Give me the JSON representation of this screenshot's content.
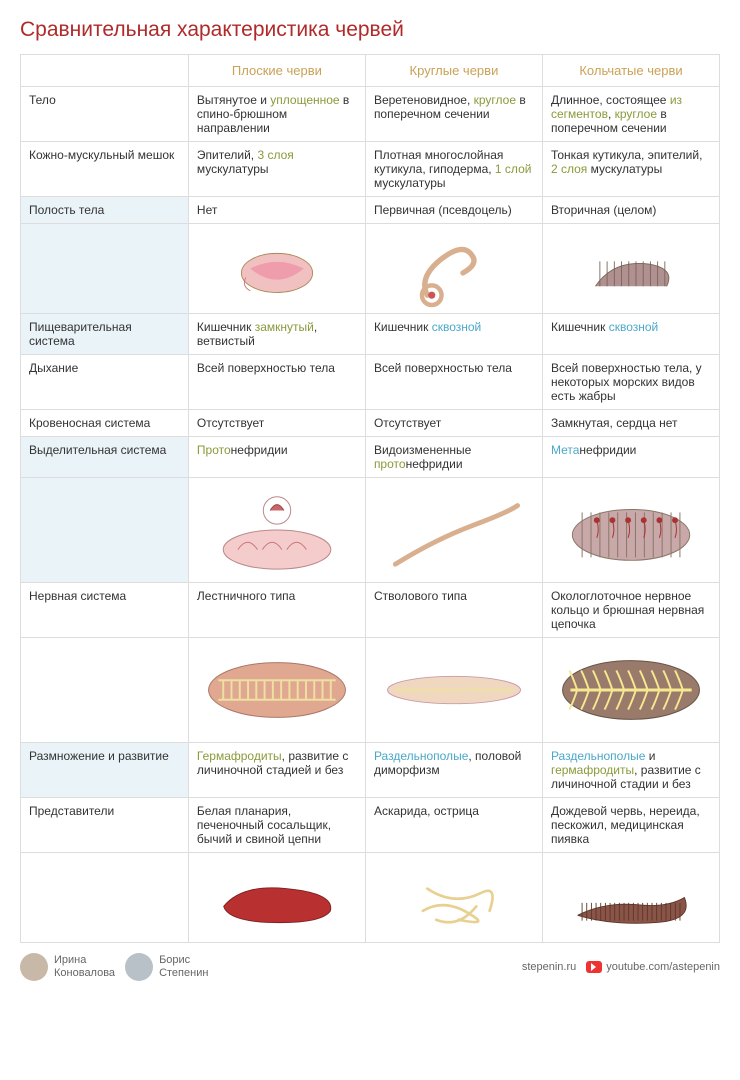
{
  "title": "Сравнительная характеристика червей",
  "columns": [
    "Плоские черви",
    "Круглые черви",
    "Кольчатые черви"
  ],
  "rows": {
    "body": {
      "label": "Тело",
      "flat": [
        [
          "Вытянутое и ",
          ""
        ],
        [
          "уплощенное",
          "olive"
        ],
        [
          " в спино-брюшном направлении",
          ""
        ]
      ],
      "round": [
        [
          "Веретеновидное, ",
          ""
        ],
        [
          "круглое",
          "olive"
        ],
        [
          " в поперечном сечении",
          ""
        ]
      ],
      "ring": [
        [
          "Длинное, состоящее ",
          ""
        ],
        [
          "из сегментов",
          "olive"
        ],
        [
          ", ",
          ""
        ],
        [
          "круглое",
          "olive"
        ],
        [
          " в поперечном сечении",
          ""
        ]
      ]
    },
    "skin": {
      "label": "Кожно-мускульный мешок",
      "flat": [
        [
          "Эпителий, ",
          ""
        ],
        [
          "3 слоя",
          "olive"
        ],
        [
          " мускулатуры",
          ""
        ]
      ],
      "round": [
        [
          "Плотная многослойная кутикула, гиподерма, ",
          ""
        ],
        [
          "1 слой",
          "olive"
        ],
        [
          " мускулатуры",
          ""
        ]
      ],
      "ring": [
        [
          "Тонкая кутикула, эпителий, ",
          ""
        ],
        [
          "2 слоя",
          "olive"
        ],
        [
          " мускулатуры",
          ""
        ]
      ]
    },
    "cavity": {
      "label": "Полость тела",
      "hl": true,
      "flat": [
        [
          "Нет",
          ""
        ]
      ],
      "round": [
        [
          "Первичная (псевдоцель)",
          ""
        ]
      ],
      "ring": [
        [
          "Вторичная (целом)",
          ""
        ]
      ]
    },
    "digest": {
      "label": "Пищеварительная система",
      "hl": true,
      "flat": [
        [
          "Кишечник ",
          ""
        ],
        [
          "замкнутый",
          "olive"
        ],
        [
          ", ветвистый",
          ""
        ]
      ],
      "round": [
        [
          "Кишечник ",
          ""
        ],
        [
          "сквозной",
          "blue"
        ]
      ],
      "ring": [
        [
          "Кишечник ",
          ""
        ],
        [
          "сквозной",
          "blue"
        ]
      ]
    },
    "breath": {
      "label": "Дыхание",
      "flat": [
        [
          "Всей поверхностью тела",
          ""
        ]
      ],
      "round": [
        [
          "Всей поверхностью тела",
          ""
        ]
      ],
      "ring": [
        [
          "Всей поверхностью тела, у некоторых морских видов есть жабры",
          ""
        ]
      ]
    },
    "blood": {
      "label": "Кровеносная система",
      "flat": [
        [
          "Отсутствует",
          ""
        ]
      ],
      "round": [
        [
          "Отсутствует",
          ""
        ]
      ],
      "ring": [
        [
          "Замкнутая, сердца нет",
          ""
        ]
      ]
    },
    "excret": {
      "label": "Выделительная система",
      "hl": true,
      "flat": [
        [
          "Прото",
          "olive"
        ],
        [
          "нефридии",
          ""
        ]
      ],
      "round": [
        [
          "Видоизмененные ",
          ""
        ],
        [
          "прото",
          "olive"
        ],
        [
          "нефридии",
          ""
        ]
      ],
      "ring": [
        [
          "Мета",
          "blue"
        ],
        [
          "нефридии",
          ""
        ]
      ]
    },
    "nerve": {
      "label": "Нервная система",
      "flat": [
        [
          "Лестничного типа",
          ""
        ]
      ],
      "round": [
        [
          "Стволового типа",
          ""
        ]
      ],
      "ring": [
        [
          "Окологлоточное нервное кольцо и брюшная нервная цепочка",
          ""
        ]
      ]
    },
    "repro": {
      "label": "Размножение и развитие",
      "hl": true,
      "flat": [
        [
          "Гермафродиты",
          "olive"
        ],
        [
          ", развитие с личиночной стадией и без",
          ""
        ]
      ],
      "round": [
        [
          "Раздельнополые",
          "blue"
        ],
        [
          ", половой диморфизм",
          ""
        ]
      ],
      "ring": [
        [
          "Раздельнополые",
          "blue"
        ],
        [
          " и ",
          ""
        ],
        [
          "гермафродиты",
          "olive"
        ],
        [
          ", развитие с личиночной стадии и без",
          ""
        ]
      ]
    },
    "reps": {
      "label": "Представители",
      "flat": [
        [
          "Белая планария, печеночный сосальщик, бычий и свиной цепни",
          ""
        ]
      ],
      "round": [
        [
          "Аскарида, острица",
          ""
        ]
      ],
      "ring": [
        [
          "Дождевой червь, нереида, пескожил, медицинская пиявка",
          ""
        ]
      ]
    }
  },
  "svg": {
    "cavity_flat": "<ellipse cx='90' cy='55' rx='40' ry='22' fill='#f1c0c0' stroke='#a85' stroke-width='1'/><path d='M60 50 Q90 35 120 50 Q90 75 60 50' fill='#e79' opacity='0.5'/><path d='M55 60 Q50 70 60 75' stroke='#c77' fill='none'/>",
    "cavity_round": "<path d='M60 80 Q50 60 75 40 Q100 20 110 35 Q118 45 100 55' fill='none' stroke='#d8b090' stroke-width='6' stroke-linecap='round'/><circle cx='65' cy='80' r='11' fill='none' stroke='#d8b090' stroke-width='5'/><circle cx='65' cy='80' r='4' fill='#c55'/>",
    "cavity_ring": "<path d='M50 70 Q70 40 110 45 Q140 50 130 70' fill='#b09090' stroke='#765' stroke-width='1'/><g stroke='#765' stroke-width='1'>REPEAT</g>",
    "excret_flat": "<ellipse cx='90' cy='70' rx='55' ry='20' fill='#f4cccc' stroke='#b88'/><g stroke='#c77' stroke-width='1' fill='none'><path d='M50 70 Q60 55 70 70'/><path d='M75 70 Q85 55 95 70'/><path d='M100 70 Q110 55 120 70'/></g><circle cx='90' cy='30' r='14' fill='none' stroke='#b88'/><path d='M83 30 Q90 18 97 30' fill='#c66' stroke='#944'/>",
    "excret_round": "<path d='M30 85 Q70 60 110 45 Q145 32 155 25' fill='none' stroke='#d8b090' stroke-width='5' stroke-linecap='round'/>",
    "excret_ring": "<ellipse cx='90' cy='55' rx='60' ry='26' fill='#c8a8a8' stroke='#876'/><g stroke='#876'>SEG</g><g fill='#a33'>DOTS</g>",
    "nerve_flat": "<ellipse cx='90' cy='50' rx='70' ry='28' fill='#e0a890' stroke='#a76'/><g stroke='#eee0a0' stroke-width='2' fill='none'><line x1='30' y1='40' x2='150' y2='40'/><line x1='30' y1='60' x2='150' y2='60'/>LADDER</g>",
    "nerve_round": "<ellipse cx='90' cy='50' rx='68' ry='14' fill='#f0d8c0' stroke='#c9a'/><line x1='30' y1='50' x2='150' y2='50' stroke='#eee0a0' stroke-width='2'/>",
    "nerve_ring": "<ellipse cx='90' cy='50' rx='70' ry='30' fill='#9a7a6a' stroke='#654'/><line x1='28' y1='50' x2='152' y2='50' stroke='#f5e890' stroke-width='3'/><g stroke='#f5e890' stroke-width='2' fill='none'>BRANCH</g>",
    "reps_flat": "<path d='M30 60 Q50 35 100 40 Q155 45 150 65 Q140 80 80 78 Q35 76 30 60' fill='#b83030' stroke='#7a2020'/>",
    "reps_round": "<g fill='none' stroke='#e8d090' stroke-width='3' stroke-linecap='round'><path d='M60 40 Q90 60 120 45 Q140 35 130 65'/><path d='M55 65 Q80 50 110 70 Q130 82 95 75'/><path d='M70 75 Q95 85 115 60'/></g>",
    "reps_ring": "<path d='M30 70 Q60 55 95 58 Q130 62 150 50 Q160 75 120 78 Q70 82 30 70' fill='#8a5548' stroke='#5a3528'/><g stroke='#5a3528' stroke-width='1'>RSEG</g>"
  },
  "colors": {
    "title": "#b02a2a",
    "colhead": "#c9a255",
    "olive": "#8a9a3a",
    "blue": "#4aa8c9",
    "hl_bg": "#eaf3f8",
    "border": "#dddddd"
  },
  "footer": {
    "author1_first": "Ирина",
    "author1_last": "Коновалова",
    "author2_first": "Борис",
    "author2_last": "Степенин",
    "site": "stepenin.ru",
    "youtube": "youtube.com/astepenin"
  }
}
